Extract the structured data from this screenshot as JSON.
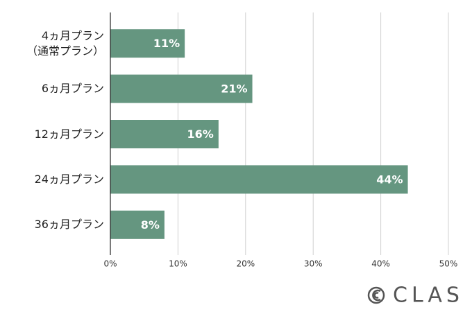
{
  "chart_data": {
    "type": "bar",
    "orientation": "horizontal",
    "categories": [
      "4ヵ月プラン\n（通常プラン）",
      "6ヵ月プラン",
      "12ヵ月プラン",
      "24ヵ月プラン",
      "36ヵ月プラン"
    ],
    "values": [
      11,
      21,
      16,
      44,
      8
    ],
    "value_labels": [
      "11%",
      "21%",
      "16%",
      "44%",
      "8%"
    ],
    "color": "#659680",
    "xlim": [
      0,
      50
    ],
    "xticks": [
      {
        "value": 0,
        "label": "0%"
      },
      {
        "value": 10,
        "label": "10%"
      },
      {
        "value": 20,
        "label": "20%"
      },
      {
        "value": 30,
        "label": "30%"
      },
      {
        "value": 40,
        "label": "40%"
      },
      {
        "value": 50,
        "label": "50%"
      }
    ],
    "grid": true
  },
  "logo": "CLAS"
}
